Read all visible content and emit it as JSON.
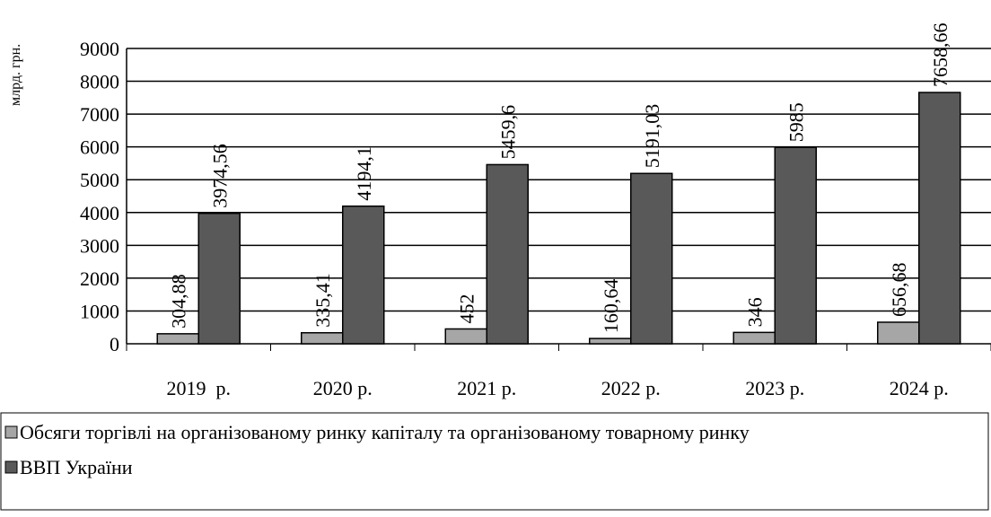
{
  "chart_data": {
    "type": "bar",
    "y_label": "млрд. грн.",
    "categories": [
      "2019  р.",
      "2020 р.",
      "2021 р.",
      "2022 р.",
      "2023 р.",
      "2024 р."
    ],
    "series": [
      {
        "name": "Обсяги торгівлі на організованому ринку капіталу та організованому товарному ринку",
        "color": "#a6a6a6",
        "values": [
          304.88,
          335.41,
          452,
          160.64,
          346,
          656.68
        ],
        "value_labels": [
          "304,88",
          "335,41",
          "452",
          "160,64",
          "346",
          "656,68"
        ]
      },
      {
        "name": "ВВП України",
        "color": "#595959",
        "values": [
          3974.56,
          4194.1,
          5459.6,
          5191.03,
          5985,
          7658.66
        ],
        "value_labels": [
          "3974,56",
          "4194,1",
          "5459,6",
          "5191,03",
          "5985",
          "7658,66"
        ]
      }
    ],
    "ylim": [
      0,
      9000
    ],
    "yticks": [
      0,
      1000,
      2000,
      3000,
      4000,
      5000,
      6000,
      7000,
      8000,
      9000
    ],
    "grid": true
  }
}
